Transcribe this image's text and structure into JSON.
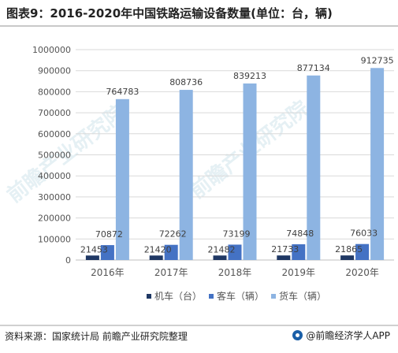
{
  "title": "图表9：2016-2020年中国铁路运输设备数量(单位：台，辆)",
  "source": "资料来源：国家统计局 前瞻产业研究院整理",
  "brand": "@前瞻经济学人APP",
  "watermark": "前瞻产业研究院",
  "colors": {
    "locomotive": "#1f3864",
    "passenger": "#4472c4",
    "freight": "#8db4e2",
    "grid": "#d9d9d9",
    "axis_text": "#555555",
    "label_text": "#404040"
  },
  "chart_data": {
    "type": "bar",
    "categories": [
      "2016年",
      "2017年",
      "2018年",
      "2019年",
      "2020年"
    ],
    "series": [
      {
        "name": "机车（台）",
        "values": [
          21453,
          21420,
          21482,
          21733,
          21865
        ]
      },
      {
        "name": "客车（辆）",
        "values": [
          70872,
          72262,
          73199,
          74848,
          76033
        ]
      },
      {
        "name": "货车（辆）",
        "values": [
          764783,
          808736,
          839213,
          877134,
          912735
        ]
      }
    ],
    "ylim": [
      0,
      1000000
    ],
    "yticks": [
      0,
      100000,
      200000,
      300000,
      400000,
      500000,
      600000,
      700000,
      800000,
      900000,
      1000000
    ],
    "grid": true,
    "legend_position": "bottom"
  }
}
